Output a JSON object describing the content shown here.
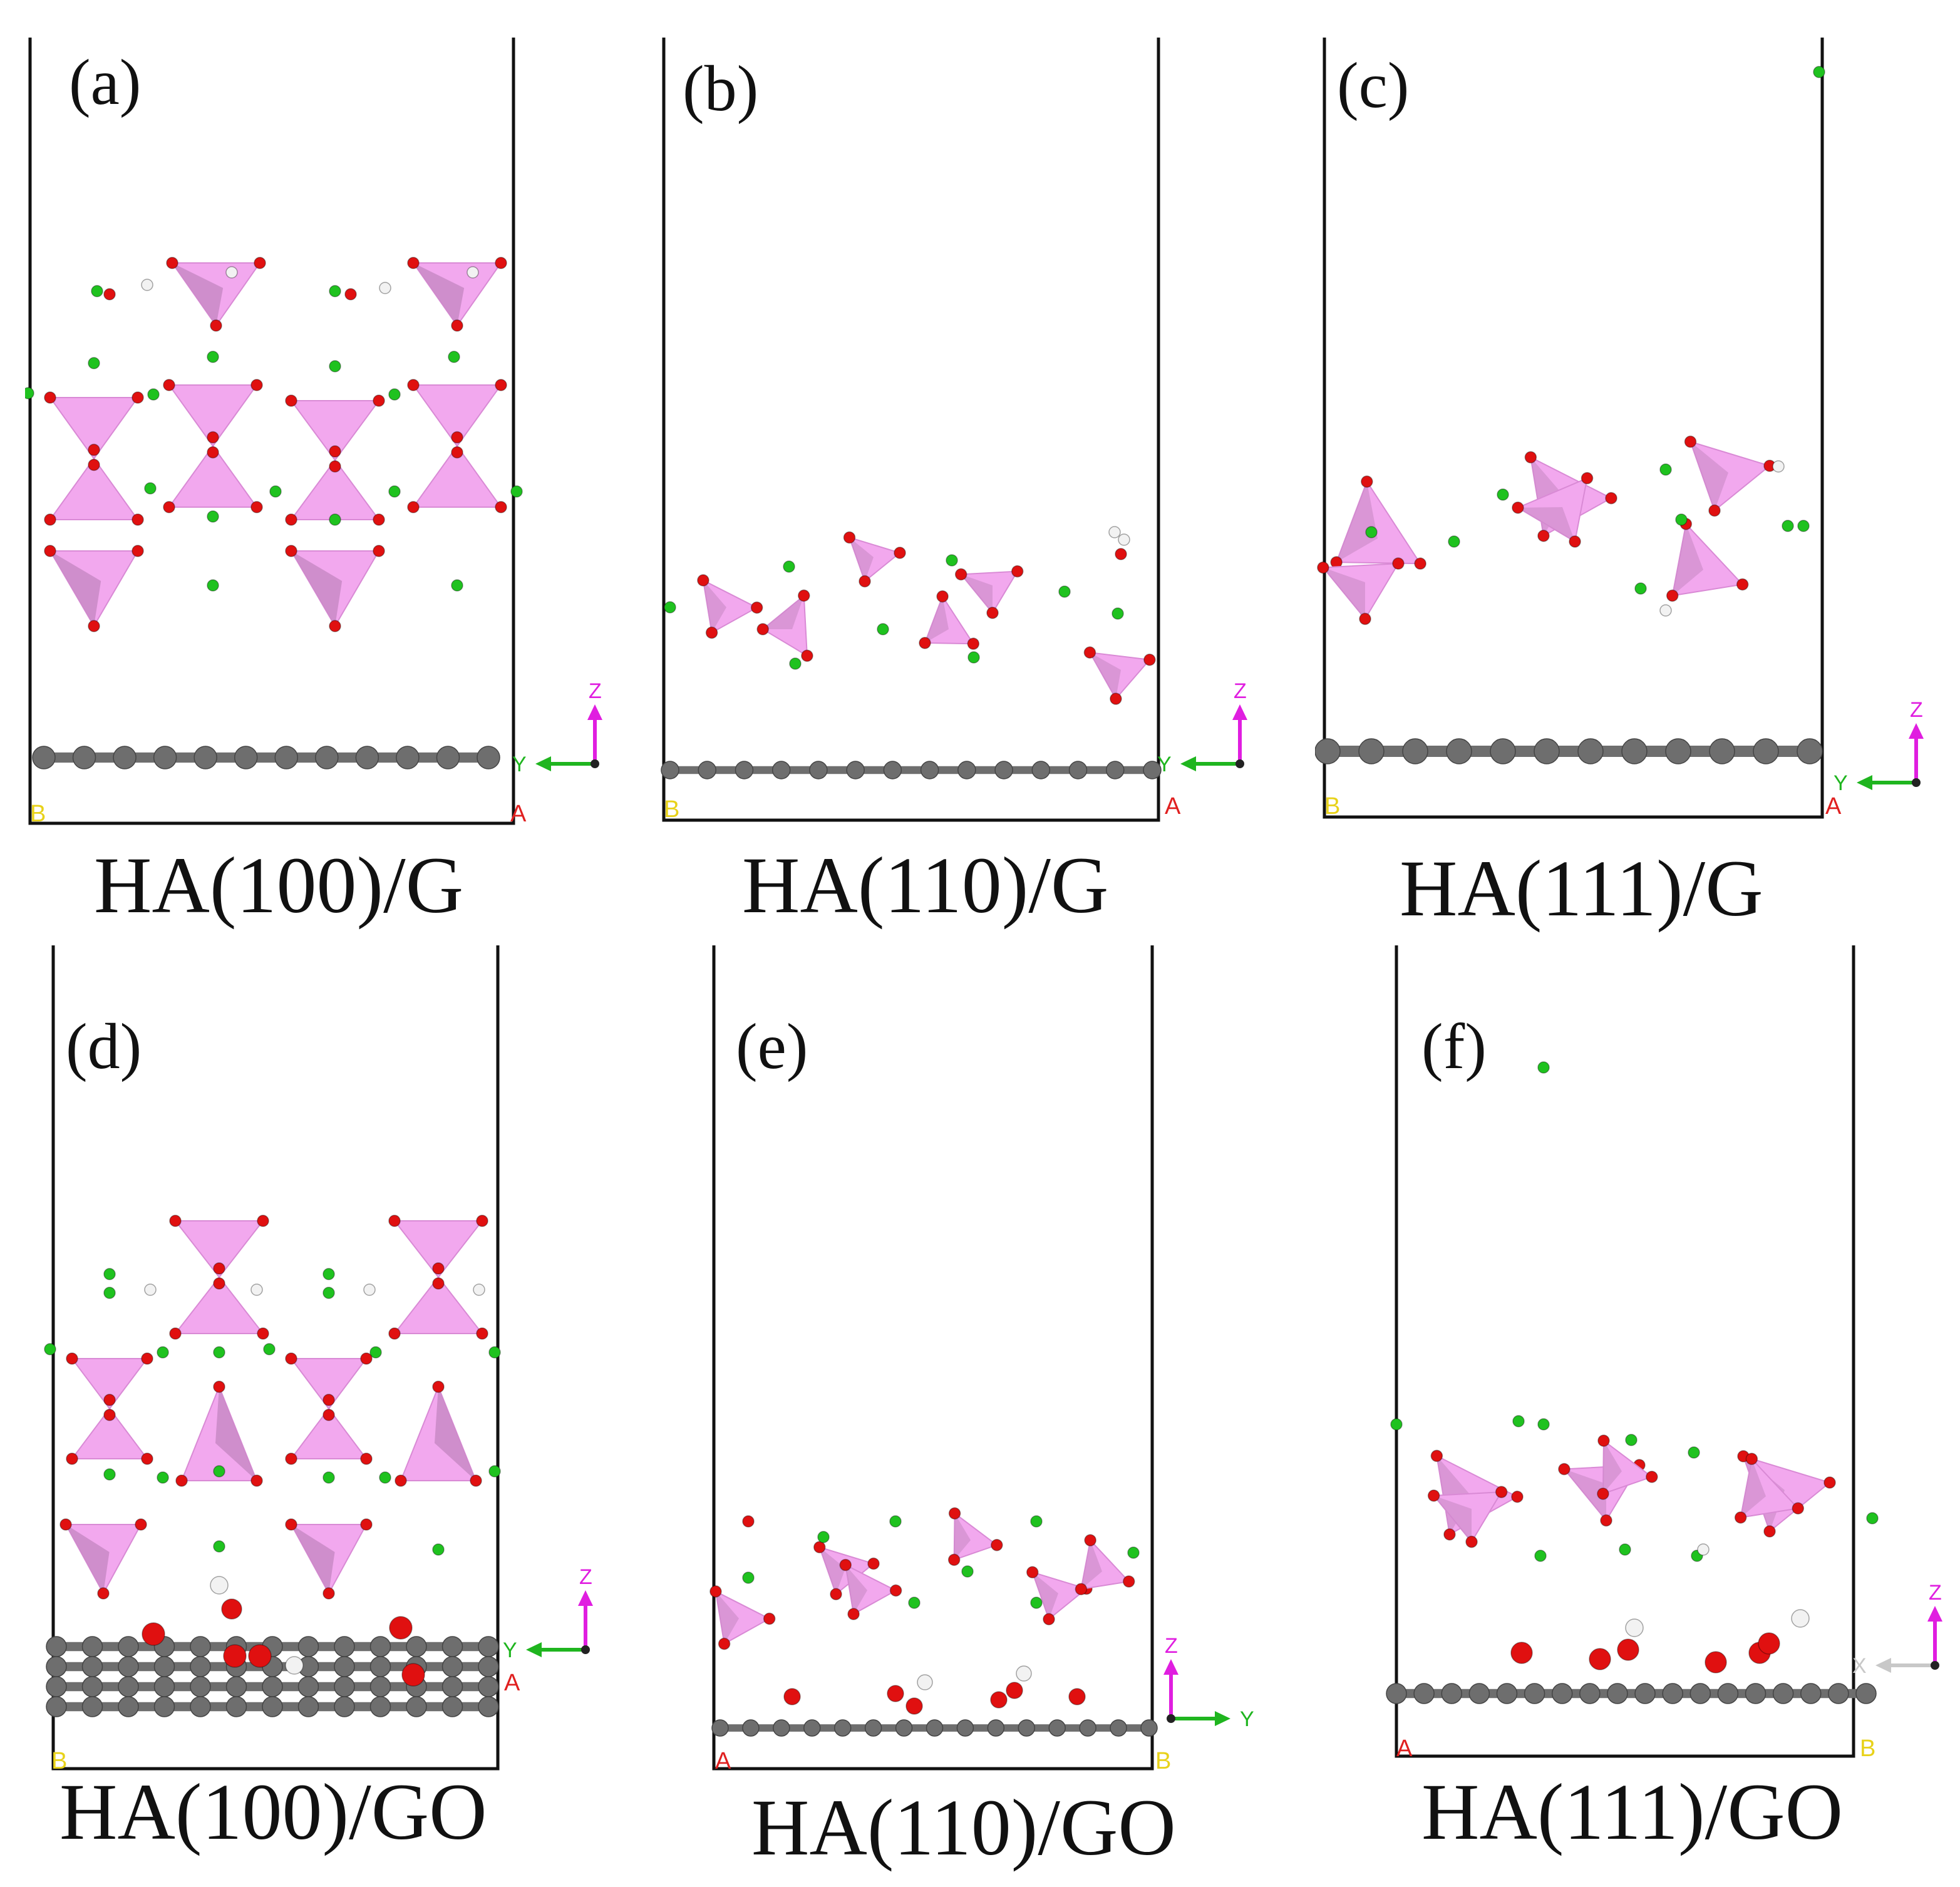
{
  "colors": {
    "background": "#ffffff",
    "cell_border": "#111111",
    "oxygen": "#e01010",
    "calcium": "#1fc21f",
    "hydrogen": "#f2f2f2",
    "phosphate_polyhedron": "#f2a8ee",
    "phosphate_shade": "#c98ac6",
    "carbon": "#6e6e6e",
    "axis_y": "#1fb51f",
    "axis_z": "#e01ee0",
    "axis_x": "#c8c8c8",
    "lattice_a": "#e02020",
    "lattice_b": "#e8d21a"
  },
  "icons": {
    "phosphate": "phosphate-tetrahedron-icon",
    "calcium": "calcium-atom-icon",
    "oxygen": "oxygen-atom-icon",
    "hydrogen": "hydrogen-atom-icon",
    "carbon": "carbon-atom-icon",
    "axes": "axis-triad-icon"
  },
  "panels": [
    {
      "id": "a",
      "label": "(a)",
      "caption": "HA(100)/G",
      "substrate": "G",
      "lattice_left": "B",
      "lattice_right": "A",
      "axes": {
        "horizontal": "Y",
        "vertical": "Z"
      }
    },
    {
      "id": "b",
      "label": "(b)",
      "caption": "HA(110)/G",
      "substrate": "G",
      "lattice_left": "B",
      "lattice_right": "A",
      "axes": {
        "horizontal": "Y",
        "vertical": "Z"
      }
    },
    {
      "id": "c",
      "label": "(c)",
      "caption": "HA(111)/G",
      "substrate": "G",
      "lattice_left": "B",
      "lattice_right": "A",
      "axes": {
        "horizontal": "Y",
        "vertical": "Z"
      }
    },
    {
      "id": "d",
      "label": "(d)",
      "caption": "HA(100)/GO",
      "substrate": "GO",
      "lattice_left": "B",
      "lattice_right": "A",
      "axes": {
        "horizontal": "Y",
        "vertical": "Z"
      }
    },
    {
      "id": "e",
      "label": "(e)",
      "caption": "HA(110)/GO",
      "substrate": "GO",
      "lattice_left": "A",
      "lattice_right": "B",
      "axes": {
        "horizontal": "Y",
        "vertical": "Z"
      }
    },
    {
      "id": "f",
      "label": "(f)",
      "caption": "HA(111)/GO",
      "substrate": "GO",
      "lattice_left": "A",
      "lattice_right": "B",
      "axes": {
        "horizontal": "X",
        "vertical": "Z"
      }
    }
  ]
}
